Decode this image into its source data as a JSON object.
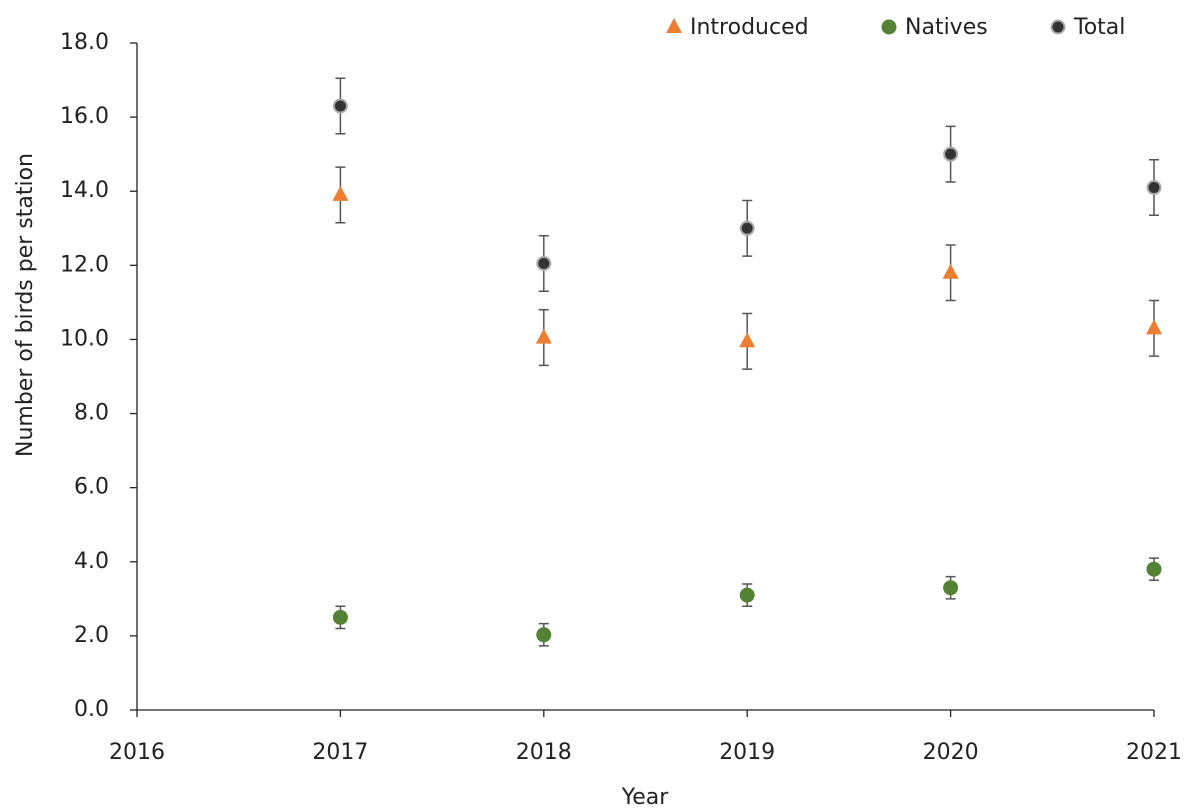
{
  "chart_data": {
    "type": "scatter",
    "x_label": "Year",
    "y_label": "Number of birds per station",
    "x": [
      2017,
      2018,
      2019,
      2020,
      2021
    ],
    "series": [
      {
        "name": "Introduced",
        "color": "#ed7d31",
        "marker": "triangle",
        "values": [
          13.9,
          10.05,
          9.95,
          11.8,
          10.3
        ],
        "errors": [
          0.75,
          0.75,
          0.75,
          0.75,
          0.75
        ]
      },
      {
        "name": "Natives",
        "color": "#548235",
        "marker": "circle",
        "values": [
          2.5,
          2.03,
          3.1,
          3.3,
          3.8
        ],
        "errors": [
          0.3,
          0.3,
          0.3,
          0.3,
          0.3
        ]
      },
      {
        "name": "Total",
        "color": "#333333",
        "marker": "circle-ring",
        "values": [
          16.3,
          12.05,
          13.0,
          15.0,
          14.1
        ],
        "errors": [
          0.75,
          0.75,
          0.75,
          0.75,
          0.75
        ]
      }
    ],
    "xlim": [
      2016,
      2021
    ],
    "xticks": [
      2016,
      2017,
      2018,
      2019,
      2020,
      2021
    ],
    "ylim": [
      0,
      18
    ],
    "yticks": [
      {
        "value": 0,
        "label": "0.0"
      },
      {
        "value": 2,
        "label": "2.0"
      },
      {
        "value": 4,
        "label": "4.0"
      },
      {
        "value": 6,
        "label": "6.0"
      },
      {
        "value": 8,
        "label": "8.0"
      },
      {
        "value": 10,
        "label": "10.0"
      },
      {
        "value": 12,
        "label": "12.0"
      },
      {
        "value": 14,
        "label": "14.0"
      },
      {
        "value": 16,
        "label": "16.0"
      },
      {
        "value": 18,
        "label": "18.0"
      }
    ],
    "grid": false,
    "legend": "top-right"
  }
}
